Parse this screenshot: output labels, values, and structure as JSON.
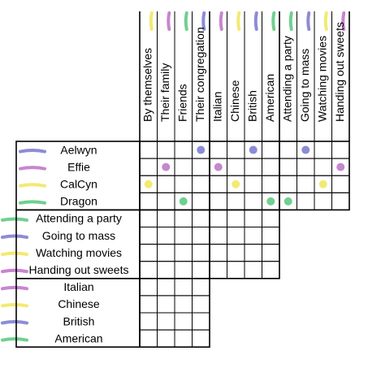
{
  "columns": [
    "By themselves",
    "Their family",
    "Friends",
    "Their congregation",
    "Italian",
    "Chinese",
    "British",
    "American",
    "Attending a party",
    "Going to mass",
    "Watching movies",
    "Handing out sweets"
  ],
  "rows": {
    "people": [
      "Aelwyn",
      "Effie",
      "CalCyn",
      "Dragon"
    ],
    "activities": [
      "Attending a party",
      "Going to mass",
      "Watching movies",
      "Handing out sweets"
    ],
    "cuisines": [
      "Italian",
      "Chinese",
      "British",
      "American"
    ]
  }
}
